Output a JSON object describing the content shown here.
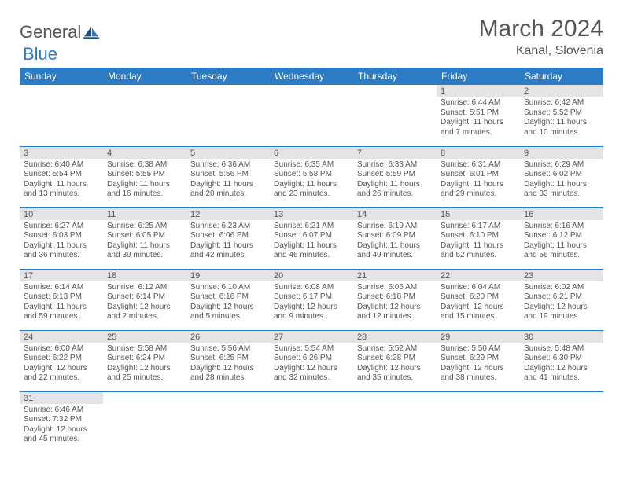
{
  "brand": {
    "part1": "General",
    "part2": "Blue"
  },
  "title": "March 2024",
  "location": "Kanal, Slovenia",
  "weekdays": [
    "Sunday",
    "Monday",
    "Tuesday",
    "Wednesday",
    "Thursday",
    "Friday",
    "Saturday"
  ],
  "colors": {
    "header_bg": "#2b7cc4",
    "header_text": "#ffffff",
    "daynum_bg": "#e4e4e4",
    "text": "#555555",
    "rule": "#2b7cc4"
  },
  "weeks": [
    [
      null,
      null,
      null,
      null,
      null,
      {
        "n": "1",
        "sr": "6:44 AM",
        "ss": "5:51 PM",
        "dl": "11 hours and 7 minutes."
      },
      {
        "n": "2",
        "sr": "6:42 AM",
        "ss": "5:52 PM",
        "dl": "11 hours and 10 minutes."
      }
    ],
    [
      {
        "n": "3",
        "sr": "6:40 AM",
        "ss": "5:54 PM",
        "dl": "11 hours and 13 minutes."
      },
      {
        "n": "4",
        "sr": "6:38 AM",
        "ss": "5:55 PM",
        "dl": "11 hours and 16 minutes."
      },
      {
        "n": "5",
        "sr": "6:36 AM",
        "ss": "5:56 PM",
        "dl": "11 hours and 20 minutes."
      },
      {
        "n": "6",
        "sr": "6:35 AM",
        "ss": "5:58 PM",
        "dl": "11 hours and 23 minutes."
      },
      {
        "n": "7",
        "sr": "6:33 AM",
        "ss": "5:59 PM",
        "dl": "11 hours and 26 minutes."
      },
      {
        "n": "8",
        "sr": "6:31 AM",
        "ss": "6:01 PM",
        "dl": "11 hours and 29 minutes."
      },
      {
        "n": "9",
        "sr": "6:29 AM",
        "ss": "6:02 PM",
        "dl": "11 hours and 33 minutes."
      }
    ],
    [
      {
        "n": "10",
        "sr": "6:27 AM",
        "ss": "6:03 PM",
        "dl": "11 hours and 36 minutes."
      },
      {
        "n": "11",
        "sr": "6:25 AM",
        "ss": "6:05 PM",
        "dl": "11 hours and 39 minutes."
      },
      {
        "n": "12",
        "sr": "6:23 AM",
        "ss": "6:06 PM",
        "dl": "11 hours and 42 minutes."
      },
      {
        "n": "13",
        "sr": "6:21 AM",
        "ss": "6:07 PM",
        "dl": "11 hours and 46 minutes."
      },
      {
        "n": "14",
        "sr": "6:19 AM",
        "ss": "6:09 PM",
        "dl": "11 hours and 49 minutes."
      },
      {
        "n": "15",
        "sr": "6:17 AM",
        "ss": "6:10 PM",
        "dl": "11 hours and 52 minutes."
      },
      {
        "n": "16",
        "sr": "6:16 AM",
        "ss": "6:12 PM",
        "dl": "11 hours and 56 minutes."
      }
    ],
    [
      {
        "n": "17",
        "sr": "6:14 AM",
        "ss": "6:13 PM",
        "dl": "11 hours and 59 minutes."
      },
      {
        "n": "18",
        "sr": "6:12 AM",
        "ss": "6:14 PM",
        "dl": "12 hours and 2 minutes."
      },
      {
        "n": "19",
        "sr": "6:10 AM",
        "ss": "6:16 PM",
        "dl": "12 hours and 5 minutes."
      },
      {
        "n": "20",
        "sr": "6:08 AM",
        "ss": "6:17 PM",
        "dl": "12 hours and 9 minutes."
      },
      {
        "n": "21",
        "sr": "6:06 AM",
        "ss": "6:18 PM",
        "dl": "12 hours and 12 minutes."
      },
      {
        "n": "22",
        "sr": "6:04 AM",
        "ss": "6:20 PM",
        "dl": "12 hours and 15 minutes."
      },
      {
        "n": "23",
        "sr": "6:02 AM",
        "ss": "6:21 PM",
        "dl": "12 hours and 19 minutes."
      }
    ],
    [
      {
        "n": "24",
        "sr": "6:00 AM",
        "ss": "6:22 PM",
        "dl": "12 hours and 22 minutes."
      },
      {
        "n": "25",
        "sr": "5:58 AM",
        "ss": "6:24 PM",
        "dl": "12 hours and 25 minutes."
      },
      {
        "n": "26",
        "sr": "5:56 AM",
        "ss": "6:25 PM",
        "dl": "12 hours and 28 minutes."
      },
      {
        "n": "27",
        "sr": "5:54 AM",
        "ss": "6:26 PM",
        "dl": "12 hours and 32 minutes."
      },
      {
        "n": "28",
        "sr": "5:52 AM",
        "ss": "6:28 PM",
        "dl": "12 hours and 35 minutes."
      },
      {
        "n": "29",
        "sr": "5:50 AM",
        "ss": "6:29 PM",
        "dl": "12 hours and 38 minutes."
      },
      {
        "n": "30",
        "sr": "5:48 AM",
        "ss": "6:30 PM",
        "dl": "12 hours and 41 minutes."
      }
    ],
    [
      {
        "n": "31",
        "sr": "6:46 AM",
        "ss": "7:32 PM",
        "dl": "12 hours and 45 minutes."
      },
      null,
      null,
      null,
      null,
      null,
      null
    ]
  ],
  "labels": {
    "sunrise": "Sunrise:",
    "sunset": "Sunset:",
    "daylight": "Daylight:"
  }
}
